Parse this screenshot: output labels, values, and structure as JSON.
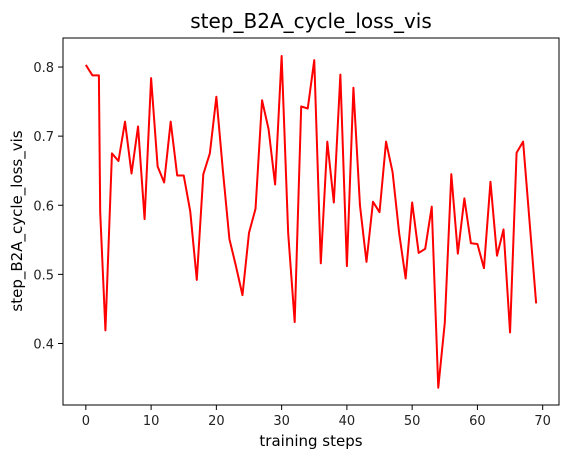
{
  "chart_data": {
    "type": "line",
    "title": "step_B2A_cycle_loss_vis",
    "xlabel": "training steps",
    "ylabel": "step_B2A_cycle_loss_vis",
    "xlim": [
      -3.5,
      72.5
    ],
    "ylim": [
      0.311,
      0.842
    ],
    "xticks": [
      0,
      10,
      20,
      30,
      40,
      50,
      60,
      70
    ],
    "yticks": [
      0.4,
      0.5,
      0.6,
      0.7,
      0.8
    ],
    "ytick_labels": [
      "0.4",
      "0.5",
      "0.6",
      "0.7",
      "0.8"
    ],
    "grid": false,
    "series": [
      {
        "color": "#ff0000",
        "x": [
          0,
          1,
          2,
          2.2,
          3,
          4,
          5,
          6,
          7,
          8,
          9,
          10,
          11,
          12,
          13,
          14,
          15,
          16,
          17,
          18,
          19,
          20,
          21,
          22,
          23,
          24,
          25,
          26,
          27,
          28,
          29,
          30,
          31,
          32,
          33,
          34,
          35,
          36,
          37,
          38,
          39,
          40,
          41,
          42,
          43,
          44,
          45,
          46,
          47,
          48,
          49,
          50,
          51,
          52,
          53,
          54,
          55,
          56,
          57,
          58,
          59,
          60,
          61,
          62,
          63,
          64,
          65,
          66,
          67,
          69
        ],
        "y": [
          0.803,
          0.788,
          0.788,
          0.59,
          0.419,
          0.675,
          0.664,
          0.721,
          0.646,
          0.714,
          0.58,
          0.784,
          0.656,
          0.633,
          0.721,
          0.643,
          0.643,
          0.591,
          0.492,
          0.645,
          0.675,
          0.757,
          0.65,
          0.551,
          0.512,
          0.47,
          0.56,
          0.595,
          0.752,
          0.71,
          0.63,
          0.816,
          0.56,
          0.431,
          0.743,
          0.74,
          0.81,
          0.516,
          0.692,
          0.604,
          0.789,
          0.512,
          0.77,
          0.6,
          0.518,
          0.605,
          0.59,
          0.692,
          0.648,
          0.56,
          0.494,
          0.604,
          0.531,
          0.537,
          0.598,
          0.336,
          0.43,
          0.645,
          0.53,
          0.61,
          0.545,
          0.544,
          0.509,
          0.634,
          0.527,
          0.565,
          0.416,
          0.676,
          0.692,
          0.458
        ]
      }
    ]
  }
}
